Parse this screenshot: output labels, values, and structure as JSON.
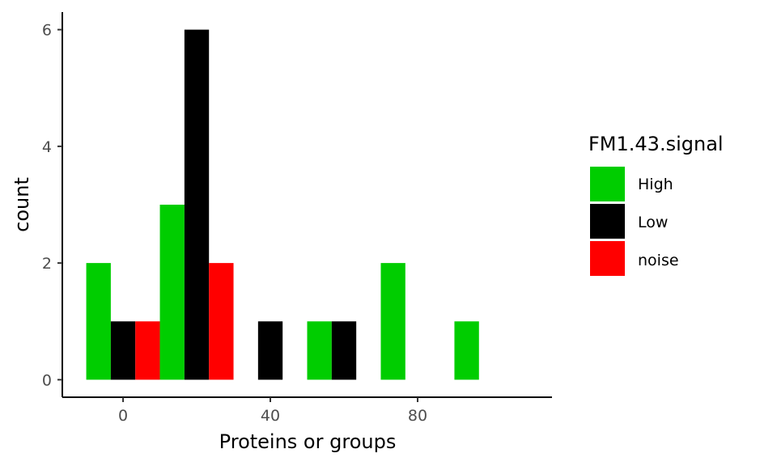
{
  "chart_data": {
    "type": "bar",
    "subtype": "dodged-histogram",
    "xlabel": "Proteins or groups",
    "ylabel": "count",
    "xlim": [
      -16.5,
      116.5
    ],
    "ylim": [
      -0.3,
      6.3
    ],
    "x_ticks": [
      0,
      40,
      80
    ],
    "y_ticks": [
      0,
      2,
      4,
      6
    ],
    "grid": false,
    "legend": {
      "title": "FM1.43.signal",
      "position": "right",
      "entries": [
        {
          "label": "High",
          "color": "#00CD00"
        },
        {
          "label": "Low",
          "color": "#000000"
        },
        {
          "label": "noise",
          "color": "#FF0000"
        }
      ]
    },
    "bin_width": 20,
    "bins": [
      0,
      20,
      40,
      60,
      80,
      100
    ],
    "series": [
      {
        "name": "High",
        "color": "#00CD00",
        "values": [
          2,
          3,
          null,
          1,
          2,
          1
        ]
      },
      {
        "name": "Low",
        "color": "#000000",
        "values": [
          1,
          6,
          1,
          1,
          null,
          null
        ]
      },
      {
        "name": "noise",
        "color": "#FF0000",
        "values": [
          1,
          2,
          null,
          null,
          null,
          null
        ]
      }
    ]
  }
}
